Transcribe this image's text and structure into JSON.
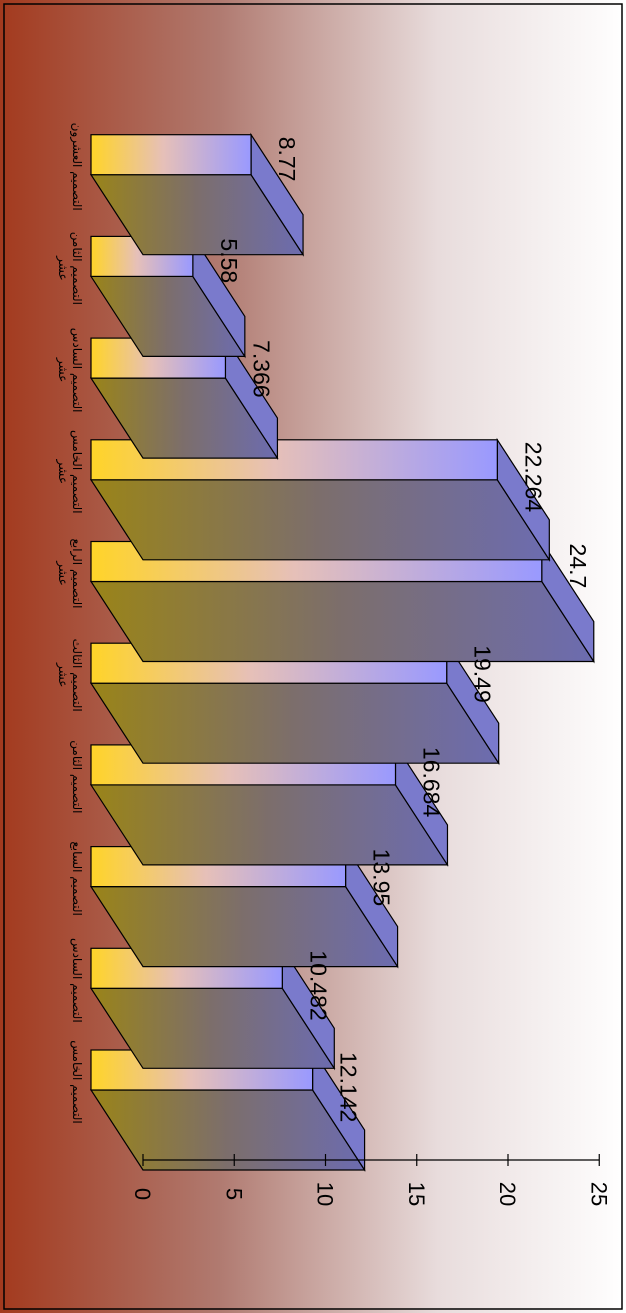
{
  "chart_data": {
    "type": "bar",
    "orientation": "horizontal-3d",
    "categories": [
      "التصميم الخامس",
      "التصميم السادس",
      "التصميم السابع",
      "التصميم الثامن",
      "التصميم الثالث عشر",
      "التصميم الرابع عشر",
      "التصميم الخامس عشر",
      "التصميم السادس عشر",
      "التصميم الثامن عشر",
      "التصميم العشرون"
    ],
    "category_lines": [
      [
        "التصميم الخامس"
      ],
      [
        "التصميم السادس"
      ],
      [
        "التصميم السابع"
      ],
      [
        "التصميم الثامن"
      ],
      [
        "التصميم الثالث",
        "عشر"
      ],
      [
        "التصميم الرابع",
        "عشر"
      ],
      [
        "التصميم الخامس",
        "عشر"
      ],
      [
        "التصميم السادس",
        "عشر"
      ],
      [
        "التصميم الثامن",
        "عشر"
      ],
      [
        "التصميم العشرون"
      ]
    ],
    "values": [
      12.142,
      10.482,
      13.95,
      16.684,
      19.49,
      24.7,
      22.264,
      7.366,
      5.58,
      8.77
    ],
    "data_labels": [
      "12.142",
      "10.482",
      "13.95",
      "16.684",
      "19.49",
      "24.7",
      "22.264",
      "7.366",
      "5.58",
      "8.77"
    ],
    "axis": {
      "min": 0,
      "max": 25,
      "ticks": [
        "0",
        "5",
        "10",
        "15",
        "20",
        "25"
      ]
    },
    "title": "",
    "xlabel": "",
    "ylabel": "",
    "grid": false,
    "legend": "none",
    "colors": {
      "bar_front_start": "#ffd428",
      "bar_front_mid": "#e6c0b8",
      "bar_front_end": "#9999ff",
      "bar_side": "#7a7acc",
      "bar_bottom": "#8b7a2a",
      "background_dark": "#a33a1e",
      "background_light": "#ffffff",
      "stroke": "#000000"
    }
  }
}
